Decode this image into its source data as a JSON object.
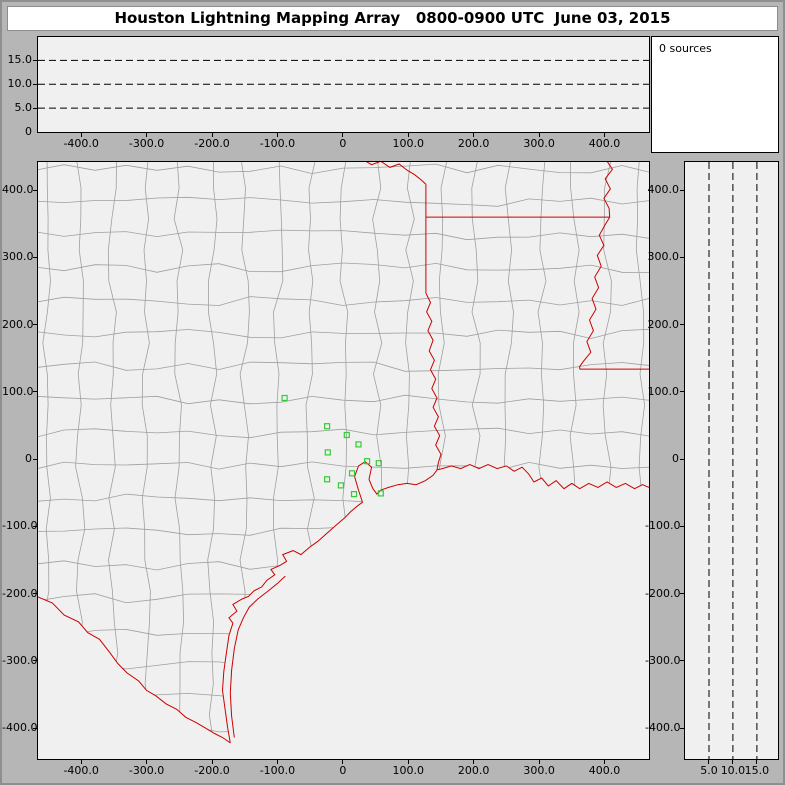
{
  "title": "Houston Lightning Mapping Array   0800-0900 UTC  June 03, 2015",
  "sources": {
    "label": "0 sources"
  },
  "colors": {
    "window_frame": "#b6b6b6",
    "panel_bg": "#f0f0f0",
    "title_bg": "#ffffff",
    "county_line": "#9f9f9f",
    "state_line": "#cc0000",
    "station": "#33cc33",
    "axis": "#000000"
  },
  "chart_data": [
    {
      "type": "scatter",
      "name": "altitude-vs-east-west",
      "x_range": [
        -466,
        468
      ],
      "y_range": [
        0,
        19.9
      ],
      "x_ticks": [
        {
          "v": -400,
          "label": "-400.0"
        },
        {
          "v": -300,
          "label": "-300.0"
        },
        {
          "v": -200,
          "label": "-200.0"
        },
        {
          "v": -100,
          "label": "-100.0"
        },
        {
          "v": 0,
          "label": "0"
        },
        {
          "v": 100,
          "label": "100.0"
        },
        {
          "v": 200,
          "label": "200.0"
        },
        {
          "v": 300,
          "label": "300.0"
        },
        {
          "v": 400,
          "label": "400.0"
        }
      ],
      "y_ticks": [
        {
          "v": 15,
          "label": "15.0"
        },
        {
          "v": 10,
          "label": "10.0"
        },
        {
          "v": 5,
          "label": "5.0"
        },
        {
          "v": 0,
          "label": "0"
        }
      ],
      "dashed_levels": [
        5,
        10,
        15
      ],
      "points": []
    },
    {
      "type": "scatter",
      "name": "plan-view-map",
      "x_range": [
        -466,
        468
      ],
      "y_range": [
        -446,
        442
      ],
      "x_ticks": [
        {
          "v": -400,
          "label": "-400.0"
        },
        {
          "v": -300,
          "label": "-300.0"
        },
        {
          "v": -200,
          "label": "-200.0"
        },
        {
          "v": -100,
          "label": "-100.0"
        },
        {
          "v": 0,
          "label": "0"
        },
        {
          "v": 100,
          "label": "100.0"
        },
        {
          "v": 200,
          "label": "200.0"
        },
        {
          "v": 300,
          "label": "300.0"
        },
        {
          "v": 400,
          "label": "400.0"
        }
      ],
      "y_ticks": [
        {
          "v": 400,
          "label": "400.0"
        },
        {
          "v": 300,
          "label": "300.0"
        },
        {
          "v": 200,
          "label": "200.0"
        },
        {
          "v": 100,
          "label": "100.0"
        },
        {
          "v": 0,
          "label": "0"
        },
        {
          "v": -100,
          "label": "-100.0"
        },
        {
          "v": -200,
          "label": "-200.0"
        },
        {
          "v": -300,
          "label": "-300.0"
        },
        {
          "v": -400,
          "label": "-400.0"
        }
      ],
      "points": [],
      "stations": [
        [
          -89,
          91
        ],
        [
          -24,
          49
        ],
        [
          6,
          36
        ],
        [
          -23,
          10
        ],
        [
          24,
          22
        ],
        [
          -24,
          -30
        ],
        [
          -3,
          -39
        ],
        [
          14,
          -21
        ],
        [
          17,
          -52
        ],
        [
          37,
          -3
        ],
        [
          55,
          -6
        ],
        [
          58,
          -51
        ]
      ]
    },
    {
      "type": "scatter",
      "name": "altitude-vs-north-south",
      "x_range": [
        0,
        19.4
      ],
      "y_range": [
        -446,
        442
      ],
      "x_ticks": [
        {
          "v": 5,
          "label": "5.0"
        },
        {
          "v": 10,
          "label": "10.0"
        },
        {
          "v": 15,
          "label": "15.0"
        }
      ],
      "y_ticks": [
        {
          "v": 400,
          "label": "400.0"
        },
        {
          "v": 300,
          "label": "300.0"
        },
        {
          "v": 200,
          "label": "200.0"
        },
        {
          "v": 100,
          "label": "100.0"
        },
        {
          "v": 0,
          "label": "0"
        },
        {
          "v": -100,
          "label": "-100.0"
        },
        {
          "v": -200,
          "label": "-200.0"
        },
        {
          "v": -300,
          "label": "-300.0"
        },
        {
          "v": -400,
          "label": "-400.0"
        }
      ],
      "dashed_levels": [
        5,
        10,
        15
      ],
      "points": []
    }
  ],
  "map": {
    "x_range": [
      -466,
      468
    ],
    "y_range": [
      -446,
      442
    ],
    "county_grid": {
      "spacing": 33,
      "jitter": 5,
      "seed": 11
    },
    "features": [
      {
        "name": "coastline",
        "points": [
          [
            -172,
            -422
          ],
          [
            -176,
            -400
          ],
          [
            -180,
            -372
          ],
          [
            -184,
            -344
          ],
          [
            -182,
            -316
          ],
          [
            -178,
            -288
          ],
          [
            -174,
            -262
          ],
          [
            -168,
            -244
          ],
          [
            -174,
            -236
          ],
          [
            -162,
            -226
          ],
          [
            -168,
            -216
          ],
          [
            -154,
            -208
          ],
          [
            -144,
            -204
          ],
          [
            -136,
            -196
          ],
          [
            -124,
            -190
          ],
          [
            -116,
            -180
          ],
          [
            -104,
            -172
          ],
          [
            -110,
            -164
          ],
          [
            -96,
            -158
          ],
          [
            -86,
            -152
          ],
          [
            -92,
            -142
          ],
          [
            -76,
            -136
          ],
          [
            -64,
            -142
          ],
          [
            -52,
            -132
          ],
          [
            -38,
            -122
          ],
          [
            -24,
            -110
          ],
          [
            -10,
            -98
          ],
          [
            2,
            -88
          ],
          [
            12,
            -78
          ],
          [
            22,
            -70
          ],
          [
            30,
            -64
          ],
          [
            24,
            -46
          ],
          [
            18,
            -26
          ],
          [
            24,
            -10
          ],
          [
            34,
            -4
          ],
          [
            44,
            -12
          ],
          [
            40,
            -30
          ],
          [
            46,
            -44
          ],
          [
            52,
            -52
          ],
          [
            58,
            -46
          ],
          [
            70,
            -42
          ],
          [
            84,
            -38
          ],
          [
            98,
            -36
          ],
          [
            112,
            -38
          ],
          [
            126,
            -32
          ],
          [
            138,
            -24
          ],
          [
            144,
            -16
          ],
          [
            152,
            -14
          ],
          [
            166,
            -10
          ],
          [
            180,
            -14
          ],
          [
            194,
            -8
          ],
          [
            208,
            -14
          ],
          [
            222,
            -8
          ],
          [
            236,
            -14
          ],
          [
            250,
            -10
          ],
          [
            262,
            -18
          ],
          [
            274,
            -12
          ],
          [
            284,
            -22
          ],
          [
            292,
            -34
          ],
          [
            304,
            -28
          ],
          [
            314,
            -40
          ],
          [
            326,
            -32
          ],
          [
            338,
            -44
          ],
          [
            350,
            -36
          ],
          [
            362,
            -44
          ],
          [
            376,
            -36
          ],
          [
            390,
            -42
          ],
          [
            404,
            -34
          ],
          [
            418,
            -42
          ],
          [
            432,
            -36
          ],
          [
            446,
            -44
          ],
          [
            458,
            -38
          ],
          [
            468,
            -42
          ]
        ]
      },
      {
        "name": "rio-grande",
        "points": [
          [
            -466,
            -205
          ],
          [
            -444,
            -214
          ],
          [
            -426,
            -232
          ],
          [
            -404,
            -242
          ],
          [
            -390,
            -258
          ],
          [
            -372,
            -268
          ],
          [
            -356,
            -288
          ],
          [
            -344,
            -304
          ],
          [
            -330,
            -318
          ],
          [
            -312,
            -330
          ],
          [
            -300,
            -344
          ],
          [
            -286,
            -352
          ],
          [
            -270,
            -364
          ],
          [
            -254,
            -372
          ],
          [
            -240,
            -384
          ],
          [
            -224,
            -392
          ],
          [
            -210,
            -400
          ],
          [
            -196,
            -408
          ],
          [
            -184,
            -414
          ],
          [
            -172,
            -422
          ]
        ]
      },
      {
        "name": "padre-island",
        "points": [
          [
            -166,
            -414
          ],
          [
            -170,
            -382
          ],
          [
            -172,
            -348
          ],
          [
            -170,
            -314
          ],
          [
            -166,
            -282
          ],
          [
            -160,
            -254
          ],
          [
            -152,
            -236
          ],
          [
            -143,
            -220
          ],
          [
            -130,
            -208
          ],
          [
            -114,
            -196
          ],
          [
            -99,
            -184
          ],
          [
            -88,
            -174
          ]
        ]
      },
      {
        "name": "red-river",
        "points": [
          [
            30,
            446
          ],
          [
            44,
            438
          ],
          [
            58,
            443
          ],
          [
            72,
            434
          ],
          [
            86,
            439
          ],
          [
            98,
            430
          ],
          [
            110,
            423
          ],
          [
            119,
            416
          ],
          [
            127,
            409
          ]
        ]
      },
      {
        "name": "texas-east-border",
        "points": [
          [
            127,
            409
          ],
          [
            127,
            247
          ]
        ]
      },
      {
        "name": "arkansas-louisiana-border",
        "points": [
          [
            127,
            360
          ],
          [
            408,
            360
          ]
        ]
      },
      {
        "name": "mississippi-river",
        "points": [
          [
            402,
            446
          ],
          [
            412,
            431
          ],
          [
            401,
            417
          ],
          [
            409,
            402
          ],
          [
            399,
            388
          ],
          [
            407,
            373
          ],
          [
            408,
            360
          ],
          [
            400,
            347
          ],
          [
            392,
            333
          ],
          [
            399,
            318
          ],
          [
            389,
            303
          ],
          [
            395,
            287
          ],
          [
            385,
            271
          ],
          [
            391,
            255
          ],
          [
            381,
            239
          ],
          [
            387,
            223
          ],
          [
            377,
            207
          ],
          [
            383,
            191
          ],
          [
            373,
            175
          ],
          [
            379,
            159
          ],
          [
            369,
            147
          ],
          [
            362,
            138
          ],
          [
            362,
            134
          ]
        ]
      },
      {
        "name": "louisiana-mississippi-border",
        "points": [
          [
            362,
            134
          ],
          [
            468,
            134
          ]
        ]
      },
      {
        "name": "sabine-river",
        "points": [
          [
            127,
            247
          ],
          [
            134,
            233
          ],
          [
            128,
            219
          ],
          [
            136,
            205
          ],
          [
            130,
            191
          ],
          [
            138,
            177
          ],
          [
            132,
            161
          ],
          [
            140,
            147
          ],
          [
            134,
            133
          ],
          [
            142,
            119
          ],
          [
            136,
            105
          ],
          [
            144,
            91
          ],
          [
            138,
            77
          ],
          [
            146,
            63
          ],
          [
            140,
            49
          ],
          [
            148,
            35
          ],
          [
            142,
            21
          ],
          [
            150,
            7
          ],
          [
            146,
            -5
          ],
          [
            144,
            -16
          ]
        ]
      }
    ]
  }
}
